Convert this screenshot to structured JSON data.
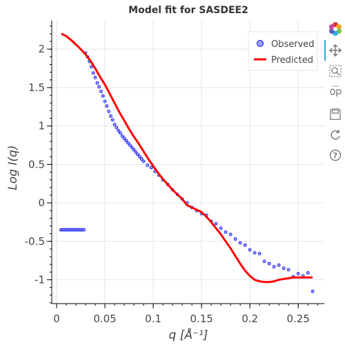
{
  "chart_data": {
    "type": "scatter",
    "title": "Model fit for SASDEE2",
    "xlabel": "q [Å⁻¹]",
    "ylabel": "Log I(q)",
    "xlim": [
      -0.005,
      0.277
    ],
    "ylim": [
      -1.31,
      2.37
    ],
    "x_ticks": [
      0,
      0.05,
      0.1,
      0.15,
      0.2,
      0.25
    ],
    "x_tick_labels": [
      "0",
      "0.05",
      "0.1",
      "0.15",
      "0.2",
      "0.25"
    ],
    "y_ticks": [
      -1,
      -0.5,
      0,
      0.5,
      1,
      1.5,
      2
    ],
    "y_tick_labels": [
      "-1",
      "-0.5",
      "0",
      "0.5",
      "1",
      "1.5",
      "2"
    ],
    "grid": true,
    "legend_position": "top-right",
    "series": [
      {
        "name": "Observed",
        "type": "scatter",
        "color": "#0000ff",
        "fill": "#9ea3f0",
        "x": [
          0.0045,
          0.0062,
          0.0079,
          0.0096,
          0.0113,
          0.013,
          0.0147,
          0.0164,
          0.0181,
          0.0198,
          0.0215,
          0.0232,
          0.0249,
          0.0266,
          0.0283,
          0.03,
          0.032,
          0.034,
          0.036,
          0.038,
          0.04,
          0.042,
          0.044,
          0.046,
          0.048,
          0.05,
          0.052,
          0.054,
          0.056,
          0.058,
          0.06,
          0.062,
          0.064,
          0.066,
          0.068,
          0.07,
          0.072,
          0.074,
          0.076,
          0.078,
          0.08,
          0.082,
          0.084,
          0.086,
          0.088,
          0.09,
          0.094,
          0.098,
          0.102,
          0.106,
          0.11,
          0.115,
          0.12,
          0.125,
          0.13,
          0.135,
          0.14,
          0.145,
          0.15,
          0.155,
          0.16,
          0.165,
          0.17,
          0.175,
          0.18,
          0.185,
          0.19,
          0.195,
          0.2,
          0.205,
          0.21,
          0.215,
          0.22,
          0.225,
          0.23,
          0.235,
          0.24,
          0.245,
          0.25,
          0.255,
          0.26,
          0.265
        ],
        "y": [
          -0.35,
          -0.35,
          -0.35,
          -0.35,
          -0.35,
          -0.35,
          -0.35,
          -0.35,
          -0.35,
          -0.35,
          -0.35,
          -0.35,
          -0.35,
          -0.35,
          -0.35,
          1.95,
          1.9,
          1.84,
          1.77,
          1.69,
          1.63,
          1.56,
          1.51,
          1.45,
          1.39,
          1.32,
          1.26,
          1.19,
          1.13,
          1.08,
          1.02,
          0.98,
          0.94,
          0.91,
          0.87,
          0.84,
          0.81,
          0.78,
          0.75,
          0.72,
          0.69,
          0.66,
          0.63,
          0.6,
          0.57,
          0.54,
          0.49,
          0.46,
          0.41,
          0.36,
          0.3,
          0.24,
          0.17,
          0.11,
          0.05,
          0.0,
          -0.06,
          -0.1,
          -0.14,
          -0.16,
          -0.24,
          -0.27,
          -0.33,
          -0.38,
          -0.41,
          -0.47,
          -0.52,
          -0.55,
          -0.61,
          -0.65,
          -0.66,
          -0.76,
          -0.79,
          -0.83,
          -0.81,
          -0.85,
          -0.87,
          -0.96,
          -0.92,
          -0.95,
          -0.91,
          -1.15
        ]
      },
      {
        "name": "Predicted",
        "type": "line",
        "color": "#ff0000",
        "x": [
          0.005,
          0.01,
          0.015,
          0.02,
          0.025,
          0.03,
          0.035,
          0.04,
          0.045,
          0.05,
          0.055,
          0.06,
          0.065,
          0.07,
          0.075,
          0.08,
          0.085,
          0.09,
          0.095,
          0.1,
          0.105,
          0.11,
          0.115,
          0.12,
          0.125,
          0.13,
          0.135,
          0.14,
          0.145,
          0.15,
          0.155,
          0.16,
          0.165,
          0.17,
          0.175,
          0.18,
          0.185,
          0.19,
          0.195,
          0.2,
          0.205,
          0.21,
          0.215,
          0.22,
          0.225,
          0.23,
          0.235,
          0.24,
          0.245,
          0.25,
          0.255,
          0.26,
          0.265
        ],
        "y": [
          2.2,
          2.17,
          2.12,
          2.06,
          2.0,
          1.93,
          1.85,
          1.75,
          1.64,
          1.54,
          1.42,
          1.3,
          1.18,
          1.07,
          0.96,
          0.86,
          0.77,
          0.67,
          0.57,
          0.48,
          0.39,
          0.31,
          0.24,
          0.17,
          0.11,
          0.05,
          -0.03,
          -0.06,
          -0.09,
          -0.12,
          -0.18,
          -0.25,
          -0.33,
          -0.41,
          -0.5,
          -0.59,
          -0.69,
          -0.79,
          -0.88,
          -0.95,
          -1.0,
          -1.02,
          -1.03,
          -1.03,
          -1.02,
          -1.0,
          -0.99,
          -0.98,
          -0.97,
          -0.97,
          -0.97,
          -0.97,
          -0.97
        ]
      }
    ]
  },
  "toolbar": {
    "tools": [
      "bokeh-logo-icon",
      "pan-icon",
      "box-zoom-icon",
      "wheel-zoom-icon",
      "save-icon",
      "reset-icon",
      "help-icon"
    ]
  }
}
